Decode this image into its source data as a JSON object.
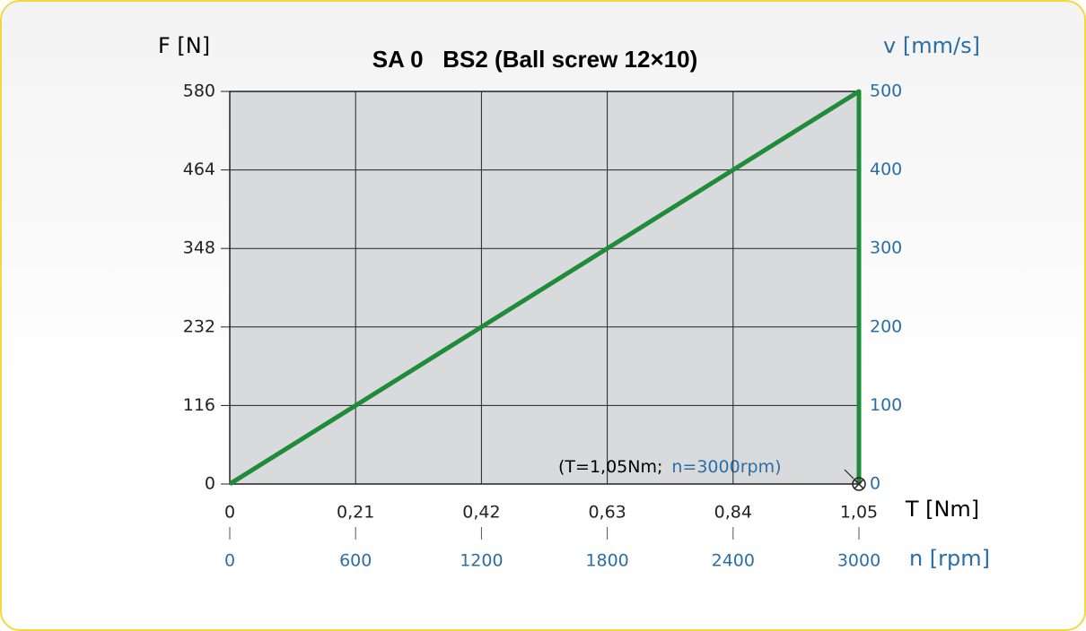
{
  "chart_data": {
    "type": "line",
    "title": "SA 0   BS2 (Ball screw 12×10)",
    "y_label": "F [N]",
    "y2_label": "v [mm/s]",
    "x_label": "T [Nm]",
    "x2_label": "n [rpm]",
    "xlim": [
      0,
      1.05
    ],
    "xticks": [
      0,
      {
        "value": 0.21,
        "label": "0,21"
      },
      {
        "value": 0.42,
        "label": "0,42"
      },
      {
        "value": 0.63,
        "label": "0,63"
      },
      {
        "value": 0.84,
        "label": "0,84"
      },
      {
        "value": 1.05,
        "label": "1,05"
      }
    ],
    "x2lim": [
      0,
      3000
    ],
    "x2ticks": [
      0,
      600,
      1200,
      1800,
      2400,
      3000
    ],
    "ylim": [
      0,
      580
    ],
    "yticks": [
      0,
      116,
      232,
      348,
      464,
      580
    ],
    "y2lim": [
      0,
      500
    ],
    "y2ticks": [
      0,
      100,
      200,
      300,
      400,
      500
    ],
    "grid": true,
    "series": [
      {
        "color": "#1e8c3a",
        "x": [
          0,
          1.05,
          1.05
        ],
        "values": [
          0,
          580,
          0
        ]
      }
    ],
    "annotation": {
      "text": "(T=1,05Nm;",
      "text2": "n=3000rpm)"
    },
    "primary_color": "#222222",
    "secondary_color": "#2b6ea6"
  }
}
